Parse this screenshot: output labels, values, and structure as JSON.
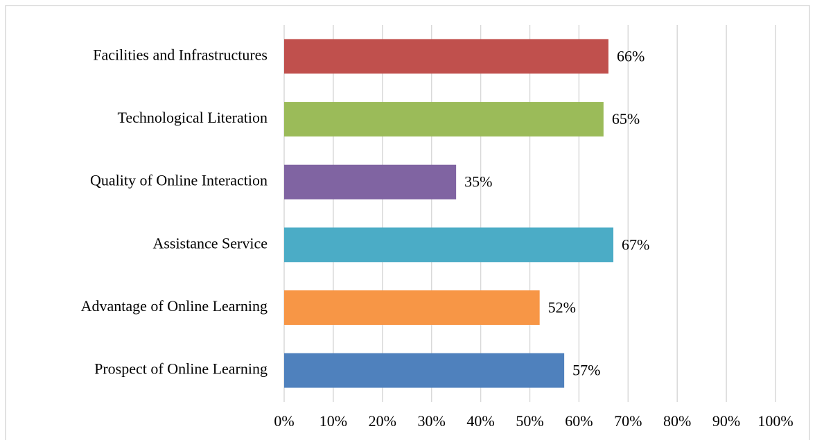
{
  "chart_data": {
    "type": "bar",
    "orientation": "horizontal",
    "categories": [
      "Facilities and Infrastructures",
      "Technological Literation",
      "Quality of Online Interaction",
      "Assistance Service",
      "Advantage of Online Learning",
      "Prospect of Online Learning"
    ],
    "values": [
      66,
      65,
      35,
      67,
      52,
      57
    ],
    "value_labels": [
      "66%",
      "65%",
      "35%",
      "67%",
      "52%",
      "57%"
    ],
    "colors": [
      "#c0504d",
      "#9bbb59",
      "#8064a2",
      "#4bacc6",
      "#f79646",
      "#4f81bd"
    ],
    "xlim": [
      0,
      100
    ],
    "xticks": [
      {
        "value": 0,
        "label": "0%"
      },
      {
        "value": 10,
        "label": "10%"
      },
      {
        "value": 20,
        "label": "20%"
      },
      {
        "value": 30,
        "label": "30%"
      },
      {
        "value": 40,
        "label": "40%"
      },
      {
        "value": 50,
        "label": "50%"
      },
      {
        "value": 60,
        "label": "60%"
      },
      {
        "value": 70,
        "label": "70%"
      },
      {
        "value": 80,
        "label": "80%"
      },
      {
        "value": 90,
        "label": "90%"
      },
      {
        "value": 100,
        "label": "100%"
      }
    ],
    "grid": true
  }
}
